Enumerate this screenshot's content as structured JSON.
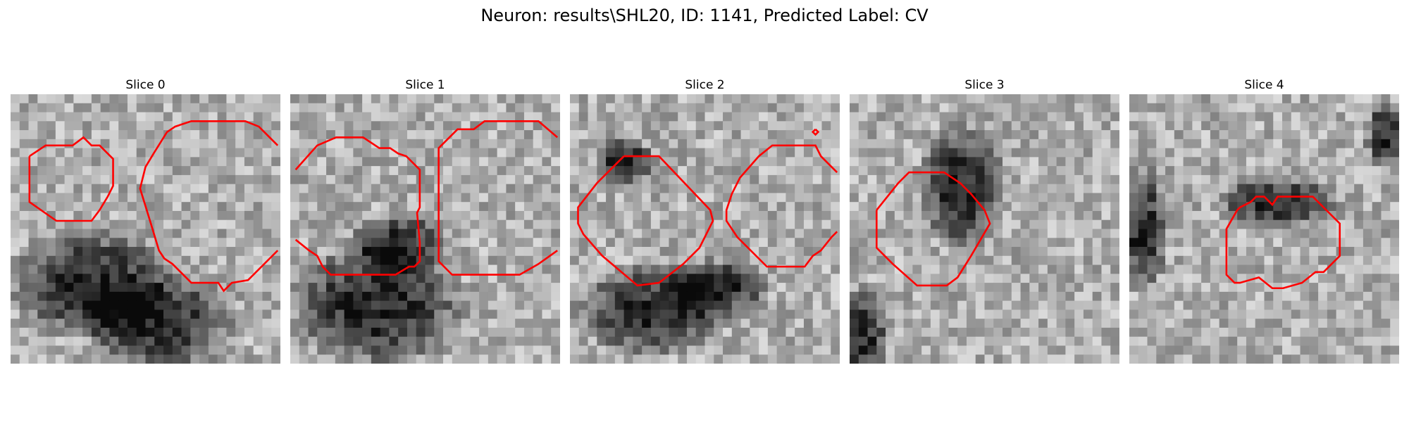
{
  "figure": {
    "title": "Neuron: results\\SHL20, ID: 1141, Predicted Label: CV"
  },
  "slices": [
    {
      "title": "Slice 0",
      "dark_blobs": [
        [
          0.3,
          0.7,
          0.32,
          0.22
        ],
        [
          0.55,
          0.85,
          0.3,
          0.2
        ]
      ],
      "contour_color": "#ff0000",
      "contours": [
        [
          [
            0.07,
            0.23
          ],
          [
            0.13,
            0.19
          ],
          [
            0.23,
            0.19
          ],
          [
            0.27,
            0.16
          ],
          [
            0.3,
            0.19
          ],
          [
            0.33,
            0.19
          ],
          [
            0.38,
            0.24
          ],
          [
            0.38,
            0.34
          ],
          [
            0.36,
            0.38
          ],
          [
            0.33,
            0.43
          ],
          [
            0.3,
            0.47
          ],
          [
            0.17,
            0.47
          ],
          [
            0.07,
            0.4
          ],
          [
            0.07,
            0.23
          ]
        ],
        [
          [
            0.99,
            0.19
          ],
          [
            0.92,
            0.12
          ],
          [
            0.87,
            0.1
          ],
          [
            0.67,
            0.1
          ],
          [
            0.61,
            0.12
          ],
          [
            0.58,
            0.14
          ],
          [
            0.53,
            0.22
          ],
          [
            0.5,
            0.27
          ],
          [
            0.48,
            0.35
          ],
          [
            0.52,
            0.48
          ],
          [
            0.55,
            0.58
          ],
          [
            0.57,
            0.61
          ],
          [
            0.6,
            0.63
          ],
          [
            0.67,
            0.7
          ],
          [
            0.77,
            0.7
          ],
          [
            0.79,
            0.73
          ],
          [
            0.82,
            0.7
          ],
          [
            0.88,
            0.69
          ],
          [
            0.99,
            0.58
          ]
        ]
      ]
    },
    {
      "title": "Slice 1",
      "dark_blobs": [
        [
          0.32,
          0.78,
          0.35,
          0.25
        ],
        [
          0.4,
          0.55,
          0.2,
          0.12
        ]
      ],
      "contour_color": "#ff0000",
      "contours": [
        [
          [
            0.02,
            0.28
          ],
          [
            0.1,
            0.19
          ],
          [
            0.17,
            0.16
          ],
          [
            0.27,
            0.16
          ],
          [
            0.33,
            0.2
          ],
          [
            0.37,
            0.2
          ],
          [
            0.4,
            0.22
          ],
          [
            0.43,
            0.23
          ],
          [
            0.48,
            0.28
          ],
          [
            0.48,
            0.42
          ],
          [
            0.47,
            0.44
          ],
          [
            0.48,
            0.55
          ],
          [
            0.48,
            0.62
          ],
          [
            0.46,
            0.64
          ],
          [
            0.44,
            0.64
          ],
          [
            0.39,
            0.67
          ],
          [
            0.33,
            0.67
          ],
          [
            0.15,
            0.67
          ],
          [
            0.12,
            0.64
          ],
          [
            0.1,
            0.6
          ],
          [
            0.07,
            0.58
          ],
          [
            0.02,
            0.54
          ]
        ],
        [
          [
            0.99,
            0.16
          ],
          [
            0.92,
            0.1
          ],
          [
            0.72,
            0.1
          ],
          [
            0.68,
            0.13
          ],
          [
            0.62,
            0.13
          ],
          [
            0.55,
            0.2
          ],
          [
            0.55,
            0.62
          ],
          [
            0.6,
            0.67
          ],
          [
            0.85,
            0.67
          ],
          [
            0.92,
            0.63
          ],
          [
            0.99,
            0.58
          ]
        ]
      ]
    },
    {
      "title": "Slice 2",
      "dark_blobs": [
        [
          0.3,
          0.8,
          0.3,
          0.18
        ],
        [
          0.55,
          0.72,
          0.2,
          0.12
        ],
        [
          0.2,
          0.25,
          0.12,
          0.1
        ]
      ],
      "contour_color": "#ff0000",
      "contours": [
        [
          [
            0.2,
            0.23
          ],
          [
            0.33,
            0.23
          ],
          [
            0.52,
            0.43
          ],
          [
            0.53,
            0.47
          ],
          [
            0.48,
            0.57
          ],
          [
            0.42,
            0.63
          ],
          [
            0.33,
            0.7
          ],
          [
            0.25,
            0.71
          ],
          [
            0.12,
            0.6
          ],
          [
            0.05,
            0.52
          ],
          [
            0.03,
            0.48
          ],
          [
            0.03,
            0.42
          ],
          [
            0.1,
            0.33
          ],
          [
            0.2,
            0.23
          ]
        ],
        [
          [
            0.99,
            0.29
          ],
          [
            0.97,
            0.27
          ],
          [
            0.93,
            0.23
          ],
          [
            0.91,
            0.19
          ],
          [
            0.75,
            0.19
          ],
          [
            0.7,
            0.23
          ],
          [
            0.63,
            0.31
          ],
          [
            0.6,
            0.37
          ],
          [
            0.58,
            0.43
          ],
          [
            0.58,
            0.47
          ],
          [
            0.62,
            0.53
          ],
          [
            0.73,
            0.64
          ],
          [
            0.87,
            0.64
          ],
          [
            0.9,
            0.6
          ],
          [
            0.93,
            0.58
          ],
          [
            0.97,
            0.53
          ],
          [
            0.99,
            0.51
          ]
        ],
        [
          [
            0.91,
            0.13
          ],
          [
            0.92,
            0.14
          ],
          [
            0.91,
            0.15
          ],
          [
            0.9,
            0.14
          ],
          [
            0.91,
            0.13
          ]
        ]
      ]
    },
    {
      "title": "Slice 3",
      "dark_blobs": [
        [
          0.42,
          0.35,
          0.18,
          0.25
        ],
        [
          0.05,
          0.9,
          0.1,
          0.2
        ]
      ],
      "contour_color": "#ff0000",
      "contours": [
        [
          [
            0.1,
            0.43
          ],
          [
            0.18,
            0.33
          ],
          [
            0.22,
            0.29
          ],
          [
            0.35,
            0.29
          ],
          [
            0.41,
            0.33
          ],
          [
            0.45,
            0.37
          ],
          [
            0.5,
            0.43
          ],
          [
            0.52,
            0.48
          ],
          [
            0.45,
            0.6
          ],
          [
            0.4,
            0.68
          ],
          [
            0.36,
            0.71
          ],
          [
            0.25,
            0.71
          ],
          [
            0.16,
            0.63
          ],
          [
            0.1,
            0.57
          ],
          [
            0.1,
            0.43
          ]
        ]
      ]
    },
    {
      "title": "Slice 4",
      "dark_blobs": [
        [
          0.05,
          0.5,
          0.1,
          0.25
        ],
        [
          0.55,
          0.4,
          0.25,
          0.1
        ],
        [
          0.95,
          0.15,
          0.08,
          0.15
        ]
      ],
      "contour_color": "#ff0000",
      "contours": [
        [
          [
            0.4,
            0.43
          ],
          [
            0.41,
            0.42
          ],
          [
            0.45,
            0.4
          ],
          [
            0.47,
            0.38
          ],
          [
            0.5,
            0.38
          ],
          [
            0.53,
            0.41
          ],
          [
            0.55,
            0.38
          ],
          [
            0.68,
            0.38
          ],
          [
            0.72,
            0.42
          ],
          [
            0.78,
            0.48
          ],
          [
            0.78,
            0.6
          ],
          [
            0.72,
            0.66
          ],
          [
            0.69,
            0.66
          ],
          [
            0.64,
            0.7
          ],
          [
            0.57,
            0.72
          ],
          [
            0.53,
            0.72
          ],
          [
            0.48,
            0.68
          ],
          [
            0.41,
            0.7
          ],
          [
            0.39,
            0.7
          ],
          [
            0.36,
            0.67
          ],
          [
            0.36,
            0.5
          ],
          [
            0.4,
            0.43
          ]
        ]
      ]
    }
  ]
}
